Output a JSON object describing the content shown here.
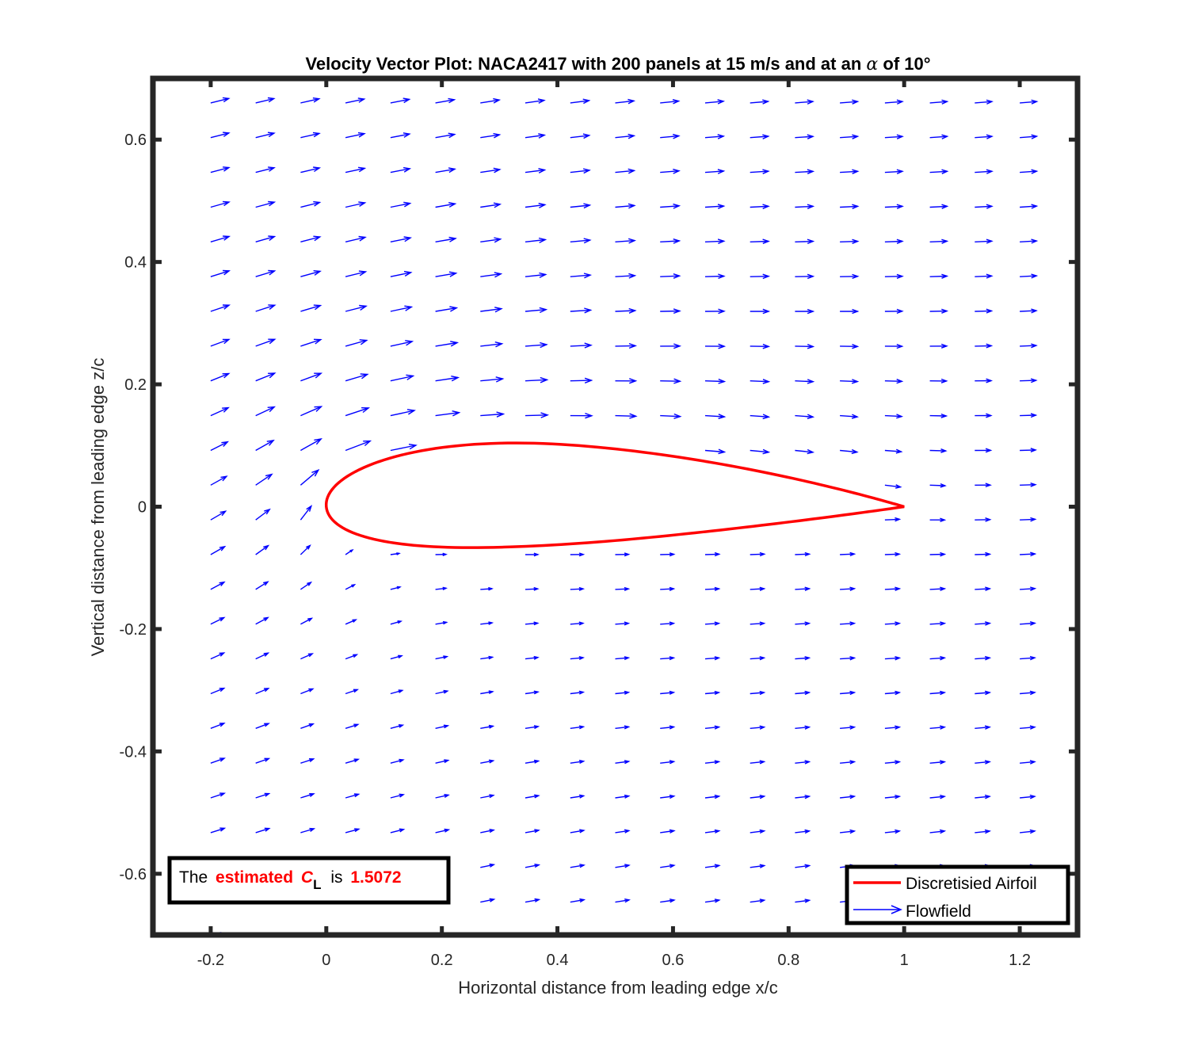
{
  "chart_data": {
    "type": "quiver",
    "title_prefix": "Velocity Vector Plot: NACA2417 with 200 panels at 15 m/s and at an",
    "title_symbol": "α",
    "title_suffix": "of 10°",
    "xlabel": "Horizontal distance from leading edge x/c",
    "ylabel": "Vertical distance from leading edge  z/c",
    "xlim": [
      -0.3,
      1.3
    ],
    "ylim": [
      -0.7,
      0.7
    ],
    "xticks": [
      -0.2,
      0,
      0.2,
      0.4,
      0.6,
      0.8,
      1,
      1.2
    ],
    "yticks": [
      -0.6,
      -0.4,
      -0.2,
      0,
      0.2,
      0.4,
      0.6
    ],
    "xtick_labels": [
      "-0.2",
      "0",
      "0.2",
      "0.4",
      "0.6",
      "0.8",
      "1",
      "1.2"
    ],
    "ytick_labels": [
      "-0.6",
      "-0.4",
      "-0.2",
      "0",
      "0.2",
      "0.4",
      "0.6"
    ],
    "airfoil": {
      "name": "NACA2417",
      "max_camber": 0.02,
      "camber_position": 0.4,
      "thickness": 0.17,
      "panels": 200,
      "angle_of_attack_deg": 10,
      "color": "#ff0000"
    },
    "flowfield": {
      "color": "#0000ff",
      "freestream_speed_mps": 15,
      "grid_x": [
        -0.2,
        -0.2,
        1.2
      ],
      "grid_z": [
        0.66,
        -0.06,
        -0.7
      ]
    },
    "legend": {
      "location": "bottom-right",
      "entries": [
        {
          "name": "Discretisied Airfoil",
          "style": "line",
          "color": "#ff0000"
        },
        {
          "name": "Flowfield",
          "style": "arrow",
          "color": "#0000ff"
        }
      ]
    },
    "annotation": {
      "location": "bottom-left",
      "text_the": "The",
      "text_estimated": "estimated",
      "text_cl_symbol": "C",
      "text_cl_sub": "L",
      "text_is": "is",
      "cl_value": "1.5072",
      "highlight_color": "#ff0000"
    }
  }
}
